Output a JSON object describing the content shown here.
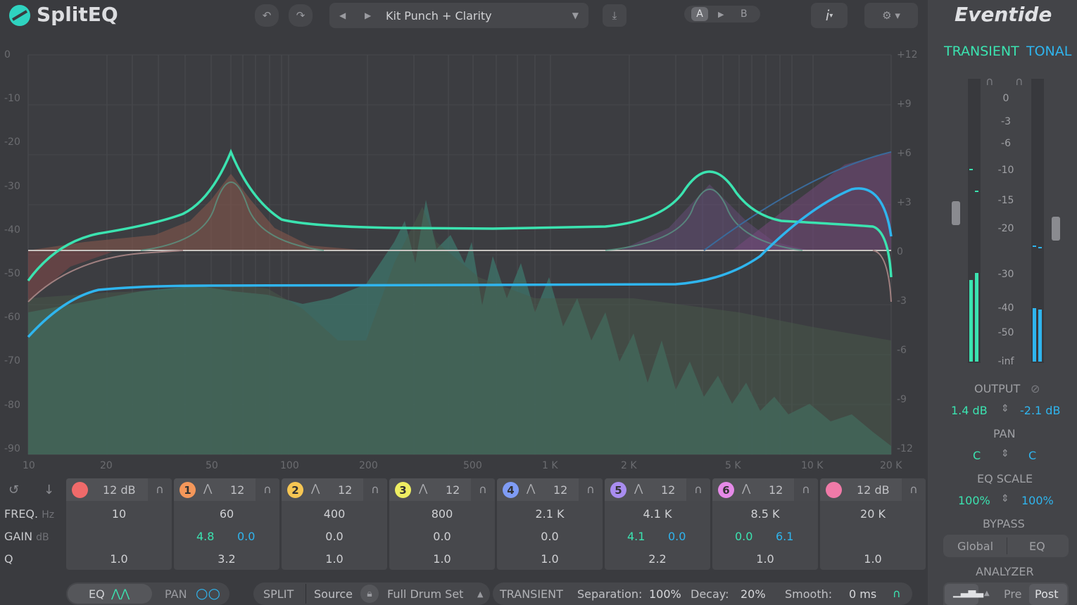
{
  "app": {
    "name": "SplitEQ",
    "brand": "Eventide"
  },
  "toolbar": {
    "preset": "Kit Punch + Clarity",
    "ab_a": "A",
    "ab_b": "B",
    "info": "i"
  },
  "graph": {
    "db_left": [
      "0",
      "-10",
      "-20",
      "-30",
      "-40",
      "-50",
      "-60",
      "-70",
      "-80",
      "-90"
    ],
    "db_right": [
      "+12",
      "+9",
      "+6",
      "+3",
      "0",
      "-3",
      "-6",
      "-9",
      "-12"
    ],
    "freq_labels": [
      "10",
      "20",
      "50",
      "100",
      "200",
      "500",
      "1 K",
      "2 K",
      "5 K",
      "10 K",
      "20 K"
    ]
  },
  "bands": [
    {
      "badge": "",
      "color": "#f06a6a",
      "slope": "12 dB",
      "freq": "10",
      "gain_t": "",
      "gain_tonal": "",
      "q": "1.0"
    },
    {
      "badge": "1",
      "color": "#f4975a",
      "slope": "12",
      "freq": "60",
      "gain_t": "4.8",
      "gain_tonal": "0.0",
      "q": "3.2"
    },
    {
      "badge": "2",
      "color": "#f6c653",
      "slope": "12",
      "freq": "400",
      "gain_t": "",
      "gain_tonal": "0.0",
      "q": "1.0"
    },
    {
      "badge": "3",
      "color": "#eeee62",
      "slope": "12",
      "freq": "800",
      "gain_t": "",
      "gain_tonal": "0.0",
      "q": "1.0"
    },
    {
      "badge": "4",
      "color": "#7f9cf5",
      "slope": "12",
      "freq": "2.1 K",
      "gain_t": "",
      "gain_tonal": "0.0",
      "q": "1.0"
    },
    {
      "badge": "5",
      "color": "#a98df0",
      "slope": "12",
      "freq": "4.1 K",
      "gain_t": "4.1",
      "gain_tonal": "0.0",
      "q": "2.2"
    },
    {
      "badge": "6",
      "color": "#e58ae8",
      "slope": "12",
      "freq": "8.5 K",
      "gain_t": "0.0",
      "gain_tonal": "6.1",
      "q": "1.0"
    },
    {
      "badge": "",
      "color": "#f07aa8",
      "slope": "12 dB",
      "freq": "20 K",
      "gain_t": "",
      "gain_tonal": "",
      "q": "1.0"
    }
  ],
  "rows": {
    "freq": "FREQ.",
    "freq_unit": "Hz",
    "gain": "GAIN",
    "gain_unit": "dB",
    "q": "Q"
  },
  "bottom": {
    "eq": "EQ",
    "pan": "PAN",
    "split": "SPLIT",
    "source": "Source",
    "source_value": "Full Drum Set",
    "transient": "TRANSIENT",
    "separation_label": "Separation:",
    "separation_value": "100%",
    "decay_label": "Decay:",
    "decay_value": "20%",
    "smooth_label": "Smooth:",
    "smooth_value": "0 ms"
  },
  "sidebar": {
    "transient": "TRANSIENT",
    "tonal": "TONAL",
    "meter_scale": [
      "0",
      "-3",
      "-6",
      "-10",
      "-15",
      "-20",
      "-30",
      "-40",
      "-50",
      "-inf"
    ],
    "output_label": "OUTPUT",
    "output_t": "1.4 dB",
    "output_tonal": "-2.1 dB",
    "pan_label": "PAN",
    "pan_t": "C",
    "pan_tonal": "C",
    "eqscale_label": "EQ SCALE",
    "eqscale_t": "100%",
    "eqscale_tonal": "100%",
    "bypass_label": "BYPASS",
    "bypass_global": "Global",
    "bypass_eq": "EQ",
    "analyzer_label": "ANALYZER",
    "pre": "Pre",
    "post": "Post"
  },
  "colors": {
    "transient": "#3be3b0",
    "tonal": "#2fb5ee",
    "bg": "#3a3b3f"
  }
}
